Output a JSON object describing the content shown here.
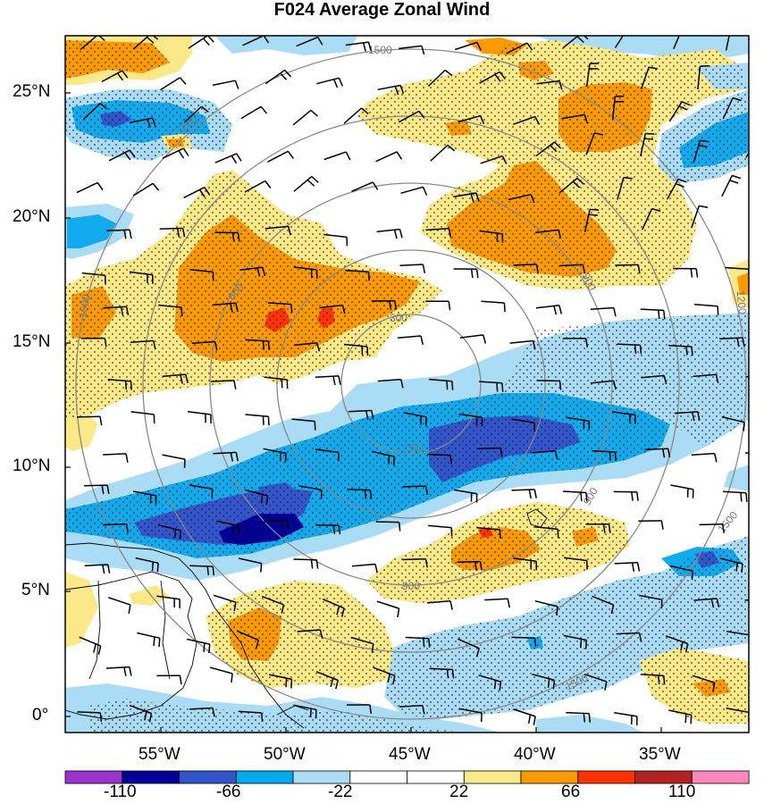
{
  "title": "F024 Average Zonal Wind",
  "axes": {
    "lat_labels": [
      "25°N",
      "20°N",
      "15°N",
      "10°N",
      "5°N",
      "0°"
    ],
    "lon_labels": [
      "55°W",
      "50°W",
      "45°W",
      "40°W",
      "35°W"
    ]
  },
  "range_rings": [
    "1500",
    "1200",
    "900",
    "600",
    "300"
  ],
  "colorbar": {
    "colors": [
      "#9933cc",
      "#000099",
      "#3355cc",
      "#00aaee",
      "#aadcf5",
      "#ffffff",
      "#ffffff",
      "#fbe888",
      "#fb9a00",
      "#ff3300",
      "#b32222",
      "#ff88bb"
    ],
    "labels": [
      "-110",
      "-66",
      "-22",
      "22",
      "66",
      "110"
    ]
  },
  "palette": {
    "blue_dark": "#000099",
    "blue_mid": "#3355cc",
    "blue": "#11aaee",
    "blue_light": "#aadcf5",
    "yellow": "#fbe888",
    "orange": "#fb9a00",
    "red": "#ff3300"
  }
}
